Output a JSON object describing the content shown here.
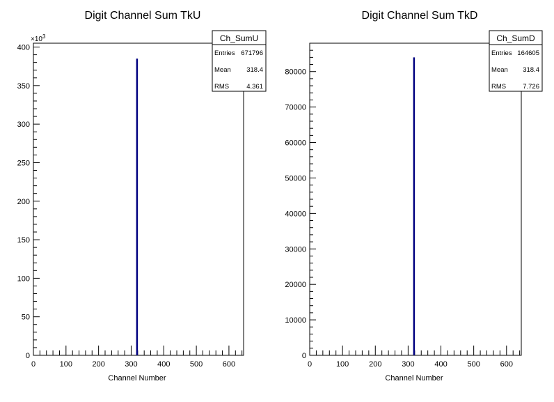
{
  "chart_data": [
    {
      "type": "bar",
      "title": "Digit Channel Sum TkU",
      "xlabel": "Channel Number",
      "ylabel": "",
      "xlim": [
        0,
        645
      ],
      "ylim": [
        0,
        405
      ],
      "y_multiplier_label": "×10",
      "y_multiplier_exp": "3",
      "xticks": [
        0,
        100,
        200,
        300,
        400,
        500,
        600
      ],
      "xtick_labels": [
        "0",
        "100",
        "200",
        "300",
        "400",
        "500",
        "600"
      ],
      "yticks": [
        0,
        50,
        100,
        150,
        200,
        250,
        300,
        350,
        400
      ],
      "ytick_labels": [
        "0",
        "50",
        "100",
        "150",
        "200",
        "250",
        "300",
        "350",
        "400"
      ],
      "x": [
        318
      ],
      "values": [
        385
      ],
      "bar_color": "#000080",
      "stats": {
        "name": "Ch_SumU",
        "rows": [
          {
            "label": "Entries",
            "value": "671796"
          },
          {
            "label": "Mean",
            "value": "318.4"
          },
          {
            "label": "RMS",
            "value": "4.361"
          }
        ]
      }
    },
    {
      "type": "bar",
      "title": "Digit Channel Sum TkD",
      "xlabel": "Channel Number",
      "ylabel": "",
      "xlim": [
        0,
        645
      ],
      "ylim": [
        0,
        88000
      ],
      "y_multiplier_label": "",
      "y_multiplier_exp": "",
      "xticks": [
        0,
        100,
        200,
        300,
        400,
        500,
        600
      ],
      "xtick_labels": [
        "0",
        "100",
        "200",
        "300",
        "400",
        "500",
        "600"
      ],
      "yticks": [
        0,
        10000,
        20000,
        30000,
        40000,
        50000,
        60000,
        70000,
        80000
      ],
      "ytick_labels": [
        "0",
        "10000",
        "20000",
        "30000",
        "40000",
        "50000",
        "60000",
        "70000",
        "80000"
      ],
      "x": [
        318
      ],
      "values": [
        84000
      ],
      "bar_color": "#000080",
      "stats": {
        "name": "Ch_SumD",
        "rows": [
          {
            "label": "Entries",
            "value": "164605"
          },
          {
            "label": "Mean",
            "value": "318.4"
          },
          {
            "label": "RMS",
            "value": "7.726"
          }
        ]
      }
    }
  ]
}
